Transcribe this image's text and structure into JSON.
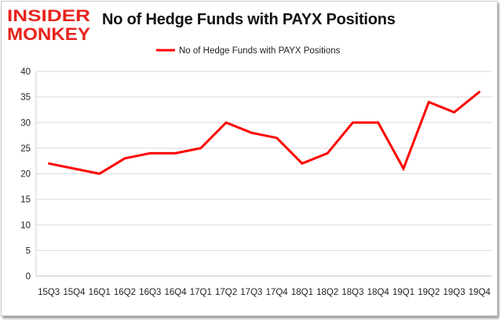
{
  "logo": {
    "line1": "INSIDER",
    "line2": "MONKEY",
    "color": "#e8231c"
  },
  "chart_data": {
    "type": "line",
    "title": "No of Hedge Funds with PAYX Positions",
    "xlabel": "",
    "ylabel": "",
    "categories": [
      "15Q3",
      "15Q4",
      "16Q1",
      "16Q2",
      "16Q3",
      "16Q4",
      "17Q1",
      "17Q2",
      "17Q3",
      "17Q4",
      "18Q1",
      "18Q2",
      "18Q3",
      "18Q4",
      "19Q1",
      "19Q2",
      "19Q3",
      "19Q4"
    ],
    "series": [
      {
        "name": "No of Hedge Funds with PAYX Positions",
        "color": "#ff0000",
        "values": [
          22,
          21,
          20,
          23,
          24,
          24,
          25,
          30,
          28,
          27,
          22,
          24,
          30,
          30,
          21,
          34,
          32,
          36
        ]
      }
    ],
    "ylim": [
      0,
      40
    ],
    "yticks": [
      0,
      5,
      10,
      15,
      20,
      25,
      30,
      35,
      40
    ],
    "grid": true,
    "legend_position": "top-center"
  }
}
